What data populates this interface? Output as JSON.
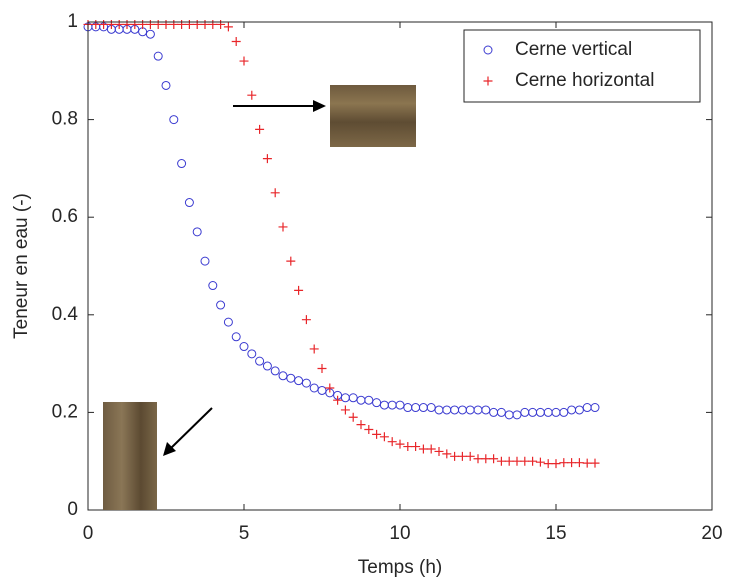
{
  "chart_data": {
    "type": "scatter",
    "xlabel": "Temps (h)",
    "ylabel": "Teneur en eau (-)",
    "x": [
      0,
      0.25,
      0.5,
      0.75,
      1,
      1.25,
      1.5,
      1.75,
      2,
      2.25,
      2.5,
      2.75,
      3,
      3.25,
      3.5,
      3.75,
      4,
      4.25,
      4.5,
      4.75,
      5,
      5.25,
      5.5,
      5.75,
      6,
      6.25,
      6.5,
      6.75,
      7,
      7.25,
      7.5,
      7.75,
      8,
      8.25,
      8.5,
      8.75,
      9,
      9.25,
      9.5,
      9.75,
      10,
      10.25,
      10.5,
      10.75,
      11,
      11.25,
      11.5,
      11.75,
      12,
      12.25,
      12.5,
      12.75,
      13,
      13.25,
      13.5,
      13.75,
      14,
      14.25,
      14.5,
      14.75,
      15,
      15.25,
      15.5,
      15.75,
      16,
      16.25
    ],
    "series": [
      {
        "name": "Cerne vertical",
        "color": "#3a3ad0",
        "marker": "circle",
        "values": [
          0.99,
          0.99,
          0.99,
          0.985,
          0.985,
          0.985,
          0.985,
          0.98,
          0.975,
          0.93,
          0.87,
          0.8,
          0.71,
          0.63,
          0.57,
          0.51,
          0.46,
          0.42,
          0.385,
          0.355,
          0.335,
          0.32,
          0.305,
          0.295,
          0.285,
          0.275,
          0.27,
          0.265,
          0.26,
          0.25,
          0.245,
          0.24,
          0.235,
          0.23,
          0.23,
          0.225,
          0.225,
          0.22,
          0.215,
          0.215,
          0.215,
          0.21,
          0.21,
          0.21,
          0.21,
          0.205,
          0.205,
          0.205,
          0.205,
          0.205,
          0.205,
          0.205,
          0.2,
          0.2,
          0.195,
          0.195,
          0.2,
          0.2,
          0.2,
          0.2,
          0.2,
          0.2,
          0.205,
          0.205,
          0.21,
          0.21
        ]
      },
      {
        "name": "Cerne horizontal",
        "color": "#e8262a",
        "marker": "plus",
        "values": [
          0.995,
          0.995,
          0.995,
          0.995,
          0.995,
          0.995,
          0.995,
          0.995,
          0.995,
          0.995,
          0.995,
          0.995,
          0.995,
          0.995,
          0.995,
          0.995,
          0.995,
          0.995,
          0.99,
          0.96,
          0.92,
          0.85,
          0.78,
          0.72,
          0.65,
          0.58,
          0.51,
          0.45,
          0.39,
          0.33,
          0.29,
          0.25,
          0.225,
          0.205,
          0.19,
          0.175,
          0.165,
          0.155,
          0.15,
          0.14,
          0.135,
          0.13,
          0.13,
          0.125,
          0.125,
          0.12,
          0.115,
          0.11,
          0.11,
          0.11,
          0.105,
          0.105,
          0.105,
          0.1,
          0.1,
          0.1,
          0.1,
          0.1,
          0.098,
          0.095,
          0.095,
          0.097,
          0.097,
          0.097,
          0.096,
          0.096
        ]
      }
    ],
    "xlim": [
      0,
      20
    ],
    "xticks": [
      0,
      5,
      10,
      15,
      20
    ],
    "ylim": [
      0,
      1
    ],
    "yticks": [
      0,
      0.2,
      0.4,
      0.6,
      0.8,
      1
    ],
    "legend": "upper right"
  }
}
